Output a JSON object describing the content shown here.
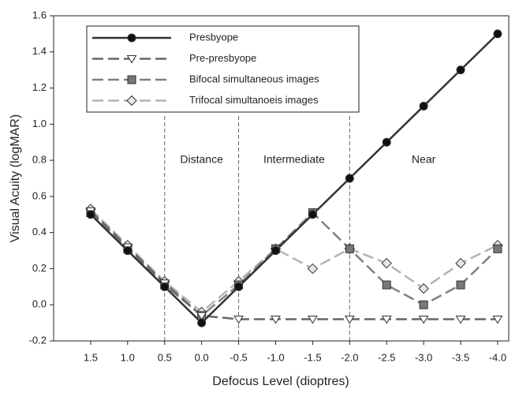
{
  "chart_data": {
    "type": "line",
    "x_label": "Defocus Level (dioptres)",
    "y_label": "Visual Acuity (logMAR)",
    "x": [
      1.5,
      1.0,
      0.5,
      0.0,
      -0.5,
      -1.0,
      -1.5,
      -2.0,
      -2.5,
      -3.0,
      -3.5,
      -4.0
    ],
    "series": [
      {
        "name": "Presbyope",
        "color": "#333333",
        "marker": "circle",
        "marker_fill": "#111111",
        "dashed": false,
        "values": [
          0.5,
          0.3,
          0.1,
          -0.1,
          0.1,
          0.3,
          0.5,
          0.7,
          0.9,
          1.1,
          1.3,
          1.5
        ]
      },
      {
        "name": "Pre-presbyope",
        "color": "#666666",
        "marker": "triangle-down",
        "marker_fill": "#ffffff",
        "dashed": true,
        "values": [
          0.52,
          0.32,
          0.12,
          -0.06,
          -0.08,
          -0.08,
          -0.08,
          -0.08,
          -0.08,
          -0.08,
          -0.08,
          -0.08
        ]
      },
      {
        "name": "Bifocal simultaneous images",
        "color": "#808080",
        "marker": "square",
        "marker_fill": "#777777",
        "dashed": true,
        "values": [
          0.51,
          0.31,
          0.11,
          -0.06,
          0.11,
          0.31,
          0.51,
          0.31,
          0.11,
          0.0,
          0.11,
          0.31
        ]
      },
      {
        "name": "Trifocal simultanoeis images",
        "color": "#b3b3b3",
        "marker": "diamond",
        "marker_fill": "#e6e6e6",
        "dashed": true,
        "values": [
          0.53,
          0.33,
          0.13,
          -0.04,
          0.13,
          0.31,
          0.2,
          0.31,
          0.23,
          0.09,
          0.23,
          0.33
        ]
      }
    ],
    "xlim": [
      2.0,
      -4.15
    ],
    "xticks": [
      1.5,
      {
        "value": 1,
        "label": "1.0"
      },
      0.5,
      {
        "value": 0,
        "label": "0.0"
      },
      -0.5,
      {
        "value": -1,
        "label": "-1.0"
      },
      -1.5,
      {
        "value": -2,
        "label": "-2.0"
      },
      -2.5,
      {
        "value": -3,
        "label": "-3.0"
      },
      -3.5,
      {
        "value": -4,
        "label": "-4.0"
      }
    ],
    "ylim": [
      -0.2,
      1.6
    ],
    "yticks": [
      -0.2,
      {
        "value": 0,
        "label": "0.0"
      },
      0.2,
      0.4,
      0.6,
      0.8,
      {
        "value": 1,
        "label": "1.0"
      },
      1.2,
      1.4,
      1.6
    ],
    "dividers": [
      0.5,
      -0.5,
      -2.0
    ],
    "regions": [
      "Distance",
      "Intermediate",
      "Near"
    ],
    "legend": "upper left"
  }
}
